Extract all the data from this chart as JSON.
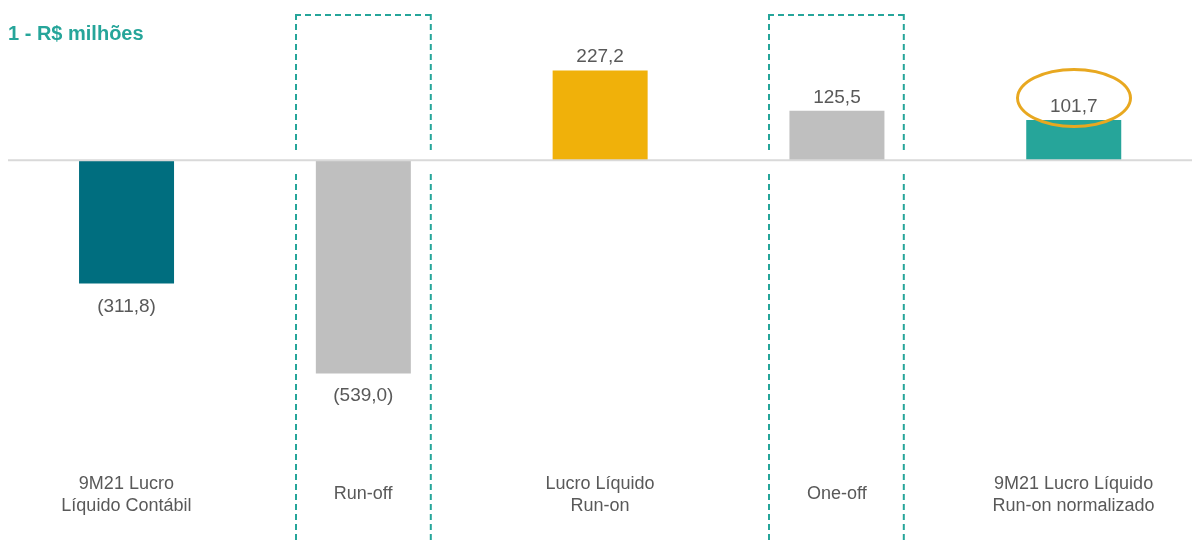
{
  "chart_data": {
    "type": "bar",
    "title": "1 - R$ milhões",
    "categories": [
      "9M21 Lucro\nLíquido Contábil",
      "Run-off",
      "Lucro Líquido\nRun-on",
      "One-off",
      "9M21 Lucro Líquido\nRun-on normalizado"
    ],
    "values": [
      -311.8,
      -539.0,
      227.2,
      125.5,
      101.7
    ],
    "colors": [
      "#006e7f",
      "#bfbfbf",
      "#f0b10a",
      "#bfbfbf",
      "#26a59a"
    ],
    "value_labels": [
      "(311,8)",
      "(539,0)",
      "227,2",
      "125,5",
      "101,7"
    ],
    "ref_lines": [
      {
        "axis": "y",
        "value": 0,
        "color": "#d9d9d9"
      }
    ]
  }
}
